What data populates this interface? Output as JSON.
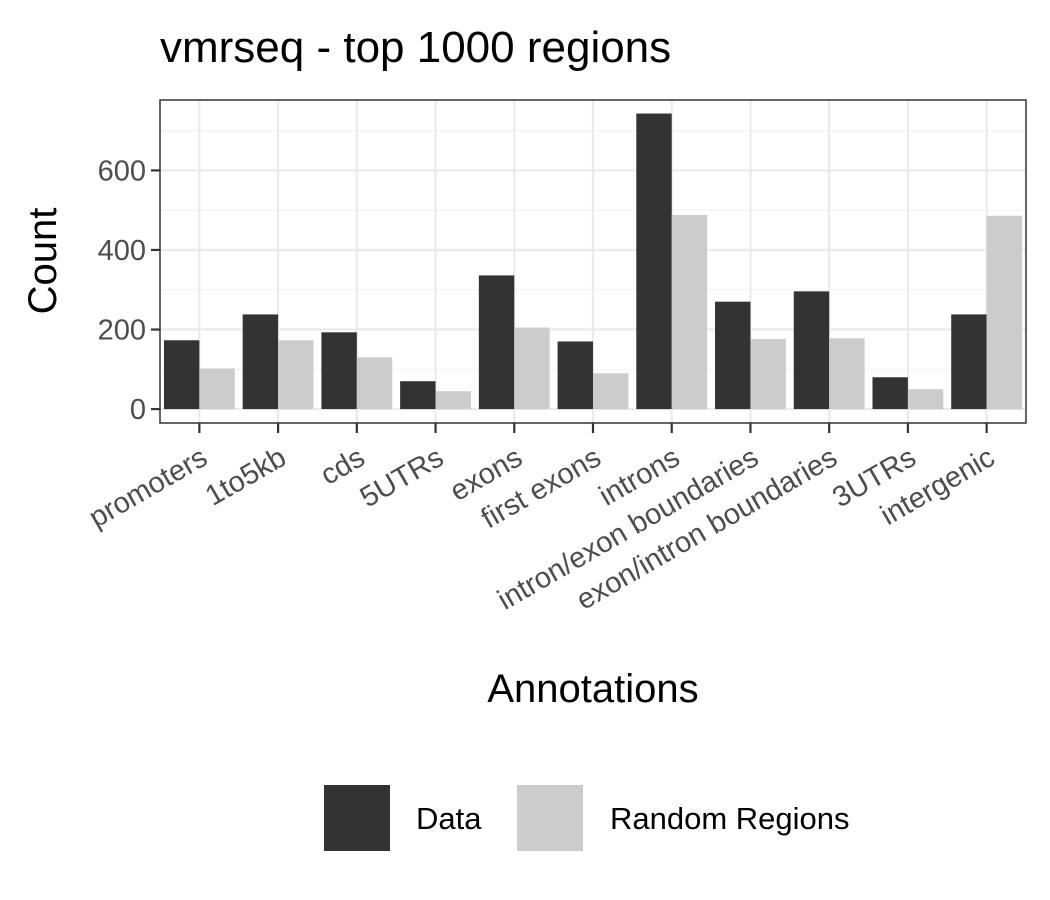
{
  "chart_data": {
    "type": "bar",
    "title": "vmrseq - top 1000 regions",
    "xlabel": "Annotations",
    "ylabel": "Count",
    "categories": [
      "promoters",
      "1to5kb",
      "cds",
      "5UTRs",
      "exons",
      "first exons",
      "introns",
      "intron/exon boundaries",
      "exon/intron boundaries",
      "3UTRs",
      "intergenic"
    ],
    "series": [
      {
        "name": "Data",
        "color": "#333333",
        "values": [
          173,
          238,
          193,
          70,
          336,
          170,
          743,
          270,
          296,
          80,
          238
        ]
      },
      {
        "name": "Random Regions",
        "color": "#cccccc",
        "values": [
          102,
          173,
          130,
          45,
          205,
          90,
          488,
          176,
          178,
          50,
          486
        ]
      }
    ],
    "yticks": [
      0,
      200,
      400,
      600
    ],
    "ylim": [
      -35,
      777
    ],
    "grid": true,
    "legend_position": "bottom"
  }
}
